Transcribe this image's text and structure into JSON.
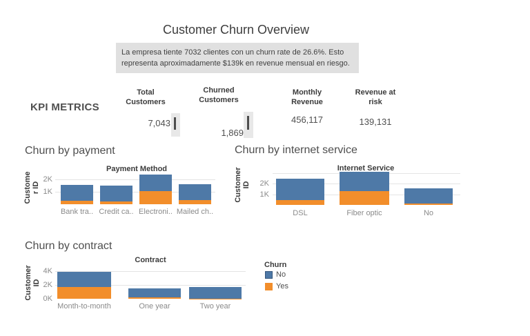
{
  "title": "Customer Churn Overview",
  "note_text": "La empresa tiente 7032 clientes con un churn rate de 26.6%. Esto representa aproximadamente $139k en revenue mensual en riesgo.",
  "kpi": {
    "section_label": "KPI METRICS",
    "metrics": [
      {
        "label": "Total Customers",
        "value": "7,043"
      },
      {
        "label": "Churned Customers",
        "value": "1,869"
      },
      {
        "label": "Monthly Revenue",
        "value": "456,117"
      },
      {
        "label": "Revenue at risk",
        "value": "139,131"
      }
    ]
  },
  "legend": {
    "title": "Churn",
    "items": [
      {
        "label": "No",
        "color": "#4e79a7"
      },
      {
        "label": "Yes",
        "color": "#f28e2b"
      }
    ],
    "position": "right of contract chart"
  },
  "colors": {
    "churn_no": "#4e79a7",
    "churn_yes": "#f28e2b",
    "note_background": "#e0e0e0",
    "gridline": "#e4e4e4",
    "kpi_band": "#e8e8e8",
    "kpi_mark": "#4d4d4d"
  },
  "chart_data": [
    {
      "type": "bar",
      "stacked": true,
      "title": "Churn by payment",
      "column_header": "Payment Method",
      "ylabel": "Customer ID",
      "ylabel_lines": [
        "Custome",
        "r ID"
      ],
      "categories": [
        "Bank tra..",
        "Credit ca..",
        "Electroni..",
        "Mailed ch.."
      ],
      "series": [
        {
          "name": "No",
          "color": "#4e79a7",
          "values": [
            1286,
            1290,
            1294,
            1304
          ]
        },
        {
          "name": "Yes",
          "color": "#f28e2b",
          "values": [
            258,
            232,
            1071,
            308
          ]
        }
      ],
      "yticks": [
        {
          "label": "1K",
          "value": 1000
        },
        {
          "label": "2K",
          "value": 2000
        }
      ],
      "gridline_values": [
        1000,
        2000
      ],
      "ylim": [
        0,
        2550
      ],
      "grid": true,
      "legend_position": "none"
    },
    {
      "type": "bar",
      "stacked": true,
      "title": "Churn by internet service",
      "column_header": "Internet Service",
      "ylabel": "Customer ID",
      "ylabel_lines": [
        "Customer",
        "ID"
      ],
      "categories": [
        "DSL",
        "Fiber optic",
        "No"
      ],
      "series": [
        {
          "name": "No",
          "color": "#4e79a7",
          "values": [
            1962,
            1799,
            1413
          ]
        },
        {
          "name": "Yes",
          "color": "#f28e2b",
          "values": [
            459,
            1297,
            113
          ]
        }
      ],
      "yticks": [
        {
          "label": "1K",
          "value": 1000
        },
        {
          "label": "2K",
          "value": 2000
        }
      ],
      "gridline_values": [
        1000,
        2000,
        3000
      ],
      "ylim": [
        0,
        3200
      ],
      "grid": true,
      "legend_position": "none"
    },
    {
      "type": "bar",
      "stacked": true,
      "title": "Churn by contract",
      "column_header": "Contract",
      "ylabel": "Customer ID",
      "ylabel_lines": [
        "Customer",
        "ID"
      ],
      "categories": [
        "Month-to-month",
        "One year",
        "Two year"
      ],
      "series": [
        {
          "name": "No",
          "color": "#4e79a7",
          "values": [
            2220,
            1307,
            1647
          ]
        },
        {
          "name": "Yes",
          "color": "#f28e2b",
          "values": [
            1655,
            166,
            48
          ]
        }
      ],
      "yticks": [
        {
          "label": "0K",
          "value": 0
        },
        {
          "label": "2K",
          "value": 2000
        },
        {
          "label": "4K",
          "value": 4000
        }
      ],
      "gridline_values": [
        2000,
        4000
      ],
      "ylim": [
        0,
        4300
      ],
      "grid": true,
      "legend_position": "right"
    }
  ]
}
